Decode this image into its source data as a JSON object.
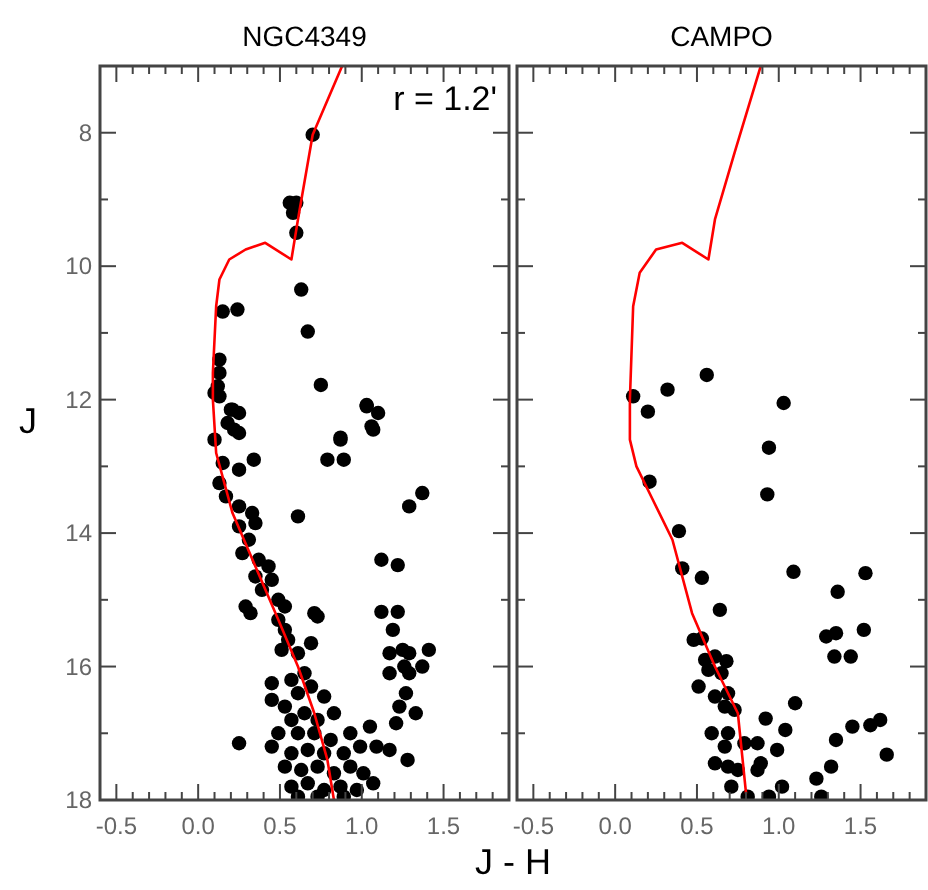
{
  "chart_data": [
    {
      "type": "scatter",
      "title": "NGC4349",
      "xlabel": "J - H",
      "ylabel": "J",
      "annotations": [
        "r = 1.2'"
      ],
      "xlim": [
        -0.6,
        1.9
      ],
      "ylim": [
        18,
        7
      ],
      "grid": false,
      "xticks": [
        {
          "value": -0.6,
          "label": null
        },
        -0.5,
        {
          "value": -0.4,
          "label": null
        },
        {
          "value": -0.3,
          "label": null
        },
        {
          "value": -0.2,
          "label": null
        },
        {
          "value": -0.1,
          "label": null
        },
        {
          "value": 0,
          "label": "0.0"
        },
        {
          "value": 0.1,
          "label": null
        },
        {
          "value": 0.2,
          "label": null
        },
        {
          "value": 0.3,
          "label": null
        },
        {
          "value": 0.4,
          "label": null
        },
        0.5,
        {
          "value": 0.6,
          "label": null
        },
        {
          "value": 0.7,
          "label": null
        },
        {
          "value": 0.8,
          "label": null
        },
        {
          "value": 0.9,
          "label": null
        },
        {
          "value": 1,
          "label": "1.0"
        },
        {
          "value": 1.1,
          "label": null
        },
        {
          "value": 1.2,
          "label": null
        },
        {
          "value": 1.3,
          "label": null
        },
        {
          "value": 1.4,
          "label": null
        },
        1.5,
        {
          "value": 1.6,
          "label": null
        },
        {
          "value": 1.7,
          "label": null
        },
        {
          "value": 1.8,
          "label": null
        }
      ],
      "yticks": [
        8,
        {
          "value": 9,
          "label": null
        },
        10,
        {
          "value": 11,
          "label": null
        },
        12,
        {
          "value": 13,
          "label": null
        },
        14,
        {
          "value": 15,
          "label": null
        },
        16,
        {
          "value": 17,
          "label": null
        },
        18
      ],
      "series": [
        {
          "marker": "circle",
          "color": "#000000",
          "x": [
            0.7,
            0.56,
            0.6,
            0.58,
            0.6,
            0.63,
            0.67,
            0.15,
            0.24,
            0.13,
            0.13,
            0.12,
            0.1,
            0.13,
            0.75,
            1.03,
            1.1,
            1.06,
            0.21,
            0.87,
            0.2,
            0.25,
            0.18,
            0.22,
            0.1,
            0.25,
            0.87,
            0.79,
            0.89,
            1.03,
            1.07,
            0.15,
            0.25,
            0.34,
            0.13,
            0.17,
            0.25,
            0.33,
            0.35,
            0.25,
            0.31,
            0.27,
            0.37,
            0.43,
            0.35,
            0.45,
            0.39,
            0.49,
            0.53,
            0.29,
            0.32,
            0.49,
            0.53,
            0.55,
            0.51,
            0.61,
            0.61,
            0.73,
            0.69,
            1.37,
            1.29,
            1.12,
            1.22,
            1.12,
            1.22,
            1.19,
            1.17,
            1.25,
            1.29,
            1.41,
            1.17,
            1.26,
            1.29,
            1.37,
            1.27,
            1.23,
            1.33,
            1.21,
            1.17,
            1.28,
            1.05,
            1.09,
            0.45,
            0.57,
            0.65,
            0.45,
            0.53,
            0.61,
            0.69,
            0.77,
            0.83,
            0.57,
            0.65,
            0.73,
            0.49,
            0.61,
            0.71,
            0.81,
            0.93,
            0.45,
            0.57,
            0.67,
            0.77,
            0.89,
            0.99,
            0.53,
            0.63,
            0.73,
            0.83,
            0.93,
            1.01,
            0.57,
            0.67,
            0.77,
            0.87,
            0.97,
            1.07,
            0.61,
            0.73,
            0.89,
            0.25,
            0.71
          ],
          "values": [
            8.03,
            9.05,
            9.05,
            9.2,
            9.5,
            10.35,
            10.98,
            10.68,
            10.65,
            11.4,
            11.6,
            11.8,
            11.9,
            11.95,
            11.78,
            12.08,
            12.2,
            12.4,
            12.15,
            12.57,
            12.15,
            12.2,
            12.35,
            12.45,
            12.6,
            12.5,
            12.6,
            12.9,
            12.9,
            12.1,
            12.45,
            12.95,
            13.05,
            12.9,
            13.25,
            13.45,
            13.6,
            13.7,
            13.85,
            13.9,
            14.1,
            14.3,
            14.4,
            14.5,
            14.65,
            14.7,
            14.85,
            15.0,
            15.1,
            15.1,
            15.2,
            15.3,
            15.45,
            15.6,
            15.75,
            15.8,
            13.75,
            15.25,
            15.65,
            13.4,
            13.6,
            14.4,
            14.48,
            15.18,
            15.18,
            15.45,
            15.8,
            15.75,
            15.8,
            15.75,
            16.1,
            16.0,
            16.1,
            16.0,
            16.4,
            16.6,
            16.7,
            16.85,
            17.25,
            17.4,
            16.9,
            17.2,
            16.25,
            16.2,
            16.1,
            16.5,
            16.6,
            16.4,
            16.3,
            16.45,
            16.7,
            16.8,
            16.7,
            16.8,
            17.0,
            17.0,
            17.0,
            17.1,
            17.0,
            17.2,
            17.3,
            17.25,
            17.3,
            17.3,
            17.2,
            17.5,
            17.55,
            17.5,
            17.6,
            17.5,
            17.6,
            17.8,
            17.75,
            17.85,
            17.8,
            17.85,
            17.75,
            17.95,
            17.95,
            17.95,
            17.15,
            15.2
          ]
        },
        {
          "type": "line",
          "marker": "none",
          "color": "#ff0000",
          "x": [
            0.88,
            0.7,
            0.61,
            0.57,
            0.41,
            0.29,
            0.19,
            0.13,
            0.11,
            0.09,
            0.09,
            0.11,
            0.21,
            0.35,
            0.49,
            0.61,
            0.71,
            0.79,
            0.83
          ],
          "values": [
            7.0,
            8.03,
            9.3,
            9.9,
            9.65,
            9.75,
            9.9,
            10.2,
            10.6,
            11.6,
            12.0,
            12.8,
            13.7,
            14.5,
            15.3,
            16.0,
            16.7,
            17.4,
            18.0
          ]
        }
      ]
    },
    {
      "type": "scatter",
      "title": "CAMPO",
      "tick_labels": "x",
      "xlim": [
        -0.6,
        1.9
      ],
      "ylim": [
        18,
        7
      ],
      "grid": false,
      "xticks": [
        {
          "value": -0.6,
          "label": null
        },
        -0.5,
        {
          "value": -0.4,
          "label": null
        },
        {
          "value": -0.3,
          "label": null
        },
        {
          "value": -0.2,
          "label": null
        },
        {
          "value": -0.1,
          "label": null
        },
        {
          "value": 0,
          "label": "0.0"
        },
        {
          "value": 0.1,
          "label": null
        },
        {
          "value": 0.2,
          "label": null
        },
        {
          "value": 0.3,
          "label": null
        },
        {
          "value": 0.4,
          "label": null
        },
        0.5,
        {
          "value": 0.6,
          "label": null
        },
        {
          "value": 0.7,
          "label": null
        },
        {
          "value": 0.8,
          "label": null
        },
        {
          "value": 0.9,
          "label": null
        },
        {
          "value": 1,
          "label": "1.0"
        },
        {
          "value": 1.1,
          "label": null
        },
        {
          "value": 1.2,
          "label": null
        },
        {
          "value": 1.3,
          "label": null
        },
        {
          "value": 1.4,
          "label": null
        },
        1.5,
        {
          "value": 1.6,
          "label": null
        },
        {
          "value": 1.7,
          "label": null
        },
        {
          "value": 1.8,
          "label": null
        }
      ],
      "yticks": [
        8,
        {
          "value": 9,
          "label": null
        },
        10,
        {
          "value": 11,
          "label": null
        },
        12,
        {
          "value": 13,
          "label": null
        },
        14,
        {
          "value": 15,
          "label": null
        },
        16,
        {
          "value": 17,
          "label": null
        },
        18
      ],
      "series": [
        {
          "marker": "circle",
          "color": "#000000",
          "x": [
            0.11,
            0.2,
            0.32,
            0.56,
            1.03,
            0.94,
            0.93,
            0.21,
            0.39,
            0.41,
            0.53,
            0.64,
            1.09,
            1.36,
            1.53,
            1.52,
            1.29,
            1.35,
            1.34,
            1.44,
            1.1,
            1.45,
            1.56,
            1.62,
            1.66,
            1.35,
            1.32,
            1.23,
            1.26,
            1.02,
            0.92,
            1.04,
            0.99,
            0.89,
            0.48,
            0.53,
            0.55,
            0.61,
            0.68,
            0.57,
            0.65,
            0.51,
            0.61,
            0.69,
            0.67,
            0.73,
            0.59,
            0.69,
            0.67,
            0.79,
            0.87,
            0.61,
            0.69,
            0.75,
            0.87,
            0.71,
            0.81,
            0.94
          ],
          "values": [
            11.95,
            12.18,
            11.85,
            11.63,
            12.05,
            12.72,
            13.42,
            13.23,
            13.97,
            14.53,
            14.67,
            15.15,
            14.58,
            14.88,
            14.6,
            15.45,
            15.55,
            15.5,
            15.85,
            15.85,
            16.55,
            16.9,
            16.88,
            16.8,
            17.32,
            17.1,
            17.5,
            17.68,
            17.95,
            17.8,
            16.78,
            16.95,
            17.25,
            17.45,
            15.6,
            15.58,
            15.9,
            15.85,
            15.92,
            16.05,
            16.1,
            16.3,
            16.45,
            16.4,
            16.6,
            16.65,
            17.0,
            17.0,
            17.2,
            17.15,
            17.15,
            17.45,
            17.5,
            17.55,
            17.55,
            17.8,
            17.95,
            17.95
          ]
        },
        {
          "type": "line",
          "marker": "none",
          "color": "#ff0000",
          "x": [
            0.89,
            0.73,
            0.61,
            0.57,
            0.41,
            0.25,
            0.15,
            0.11,
            0.09,
            0.09,
            0.13,
            0.23,
            0.35,
            0.47,
            0.61,
            0.75,
            0.8
          ],
          "values": [
            7.0,
            8.3,
            9.3,
            9.9,
            9.65,
            9.75,
            10.1,
            10.6,
            12.0,
            12.6,
            13.0,
            13.5,
            14.1,
            15.2,
            16.0,
            16.7,
            17.9
          ]
        }
      ]
    }
  ]
}
